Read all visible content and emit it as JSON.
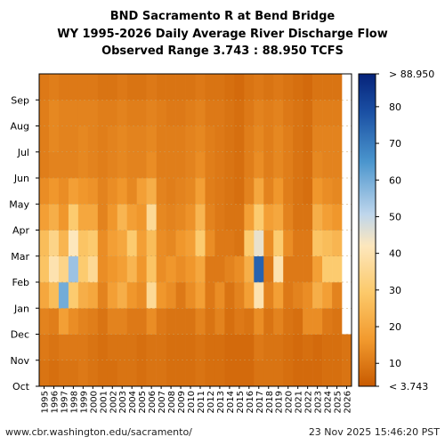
{
  "title_lines": [
    "BND Sacramento R at Bend Bridge",
    "WY 1995-2026 Daily Average River Discharge Flow",
    "Observed Range 3.743 : 88.950 TCFS"
  ],
  "footer": {
    "url": "www.cbr.washington.edu/sacramento/",
    "timestamp": "23 Nov 2025 15:46:20 PST"
  },
  "colors": {
    "low": "#c85a00",
    "mid_orange": "#f2a23a",
    "light": "#fce0a0",
    "mid_blue": "#6aa6d8",
    "high": "#06237a",
    "grid": "#c8a060"
  },
  "chart_data": {
    "type": "heatmap",
    "title": "BND Sacramento R at Bend Bridge",
    "subtitle": "WY 1995-2026 Daily Average River Discharge Flow",
    "observed_range": "Observed Range 3.743 : 88.950 TCFS",
    "x_categories": [
      "1995",
      "1996",
      "1997",
      "1998",
      "1999",
      "2000",
      "2001",
      "2002",
      "2003",
      "2004",
      "2005",
      "2006",
      "2007",
      "2008",
      "2009",
      "2010",
      "2011",
      "2012",
      "2013",
      "2014",
      "2015",
      "2016",
      "2017",
      "2018",
      "2019",
      "2020",
      "2021",
      "2022",
      "2023",
      "2024",
      "2025",
      "2026"
    ],
    "y_categories": [
      "Oct",
      "Nov",
      "Dec",
      "Jan",
      "Feb",
      "Mar",
      "Apr",
      "May",
      "Jun",
      "Jul",
      "Aug",
      "Sep"
    ],
    "colorbar": {
      "min": 3.743,
      "max": 88.95,
      "ticks": [
        10,
        20,
        30,
        40,
        50,
        60,
        70,
        80
      ],
      "min_label": "< 3.743",
      "max_label": "> 88.950"
    },
    "grid": true,
    "monthly_mean_flow": [
      [
        9,
        10,
        12,
        20,
        28,
        26,
        18,
        14,
        11,
        11,
        11,
        10
      ],
      [
        8,
        9,
        11,
        26,
        40,
        34,
        22,
        16,
        12,
        13,
        13,
        11
      ],
      [
        9,
        10,
        18,
        60,
        34,
        24,
        16,
        14,
        12,
        12,
        12,
        10
      ],
      [
        9,
        10,
        14,
        30,
        55,
        42,
        30,
        18,
        12,
        12,
        12,
        10
      ],
      [
        10,
        10,
        12,
        22,
        30,
        28,
        20,
        16,
        13,
        13,
        12,
        10
      ],
      [
        9,
        9,
        11,
        20,
        36,
        30,
        20,
        15,
        12,
        12,
        12,
        10
      ],
      [
        8,
        8,
        9,
        12,
        14,
        14,
        12,
        12,
        11,
        11,
        11,
        9
      ],
      [
        8,
        9,
        12,
        18,
        16,
        18,
        16,
        14,
        12,
        12,
        11,
        9
      ],
      [
        9,
        9,
        12,
        22,
        18,
        20,
        24,
        16,
        13,
        13,
        12,
        10
      ],
      [
        9,
        9,
        10,
        16,
        24,
        30,
        18,
        13,
        12,
        12,
        11,
        9
      ],
      [
        8,
        8,
        10,
        14,
        16,
        18,
        16,
        18,
        12,
        12,
        11,
        9
      ],
      [
        9,
        9,
        14,
        36,
        28,
        26,
        36,
        22,
        14,
        13,
        12,
        10
      ],
      [
        9,
        9,
        10,
        16,
        14,
        14,
        13,
        12,
        11,
        11,
        11,
        9
      ],
      [
        8,
        8,
        9,
        14,
        16,
        13,
        12,
        11,
        11,
        11,
        10,
        9
      ],
      [
        8,
        8,
        9,
        10,
        14,
        16,
        13,
        12,
        11,
        11,
        10,
        9
      ],
      [
        8,
        8,
        9,
        14,
        16,
        18,
        15,
        13,
        12,
        12,
        11,
        9
      ],
      [
        9,
        9,
        12,
        18,
        20,
        30,
        24,
        18,
        14,
        13,
        12,
        10
      ],
      [
        8,
        8,
        9,
        10,
        10,
        14,
        12,
        11,
        11,
        11,
        10,
        9
      ],
      [
        8,
        8,
        12,
        14,
        10,
        10,
        10,
        10,
        10,
        10,
        10,
        9
      ],
      [
        7,
        7,
        8,
        9,
        12,
        10,
        9,
        9,
        9,
        9,
        9,
        8
      ],
      [
        7,
        7,
        10,
        12,
        14,
        9,
        9,
        8,
        8,
        8,
        8,
        7
      ],
      [
        7,
        7,
        9,
        18,
        22,
        30,
        18,
        12,
        11,
        11,
        10,
        9
      ],
      [
        9,
        10,
        14,
        40,
        75,
        45,
        30,
        20,
        14,
        13,
        12,
        10
      ],
      [
        9,
        9,
        9,
        12,
        10,
        14,
        18,
        12,
        11,
        11,
        11,
        9
      ],
      [
        9,
        9,
        12,
        18,
        40,
        30,
        20,
        16,
        13,
        13,
        12,
        10
      ],
      [
        8,
        8,
        9,
        10,
        10,
        14,
        12,
        11,
        11,
        11,
        10,
        9
      ],
      [
        7,
        7,
        8,
        12,
        10,
        10,
        9,
        9,
        9,
        9,
        9,
        8
      ],
      [
        7,
        8,
        14,
        14,
        10,
        10,
        9,
        8,
        8,
        8,
        8,
        7
      ],
      [
        7,
        7,
        14,
        22,
        18,
        28,
        22,
        16,
        13,
        12,
        11,
        9
      ],
      [
        8,
        8,
        10,
        18,
        30,
        26,
        18,
        14,
        12,
        12,
        11,
        9
      ],
      [
        8,
        8,
        9,
        12,
        30,
        24,
        16,
        13,
        12,
        12,
        11,
        9
      ],
      [
        9,
        9,
        null,
        null,
        null,
        null,
        null,
        null,
        null,
        null,
        null,
        null
      ]
    ]
  }
}
